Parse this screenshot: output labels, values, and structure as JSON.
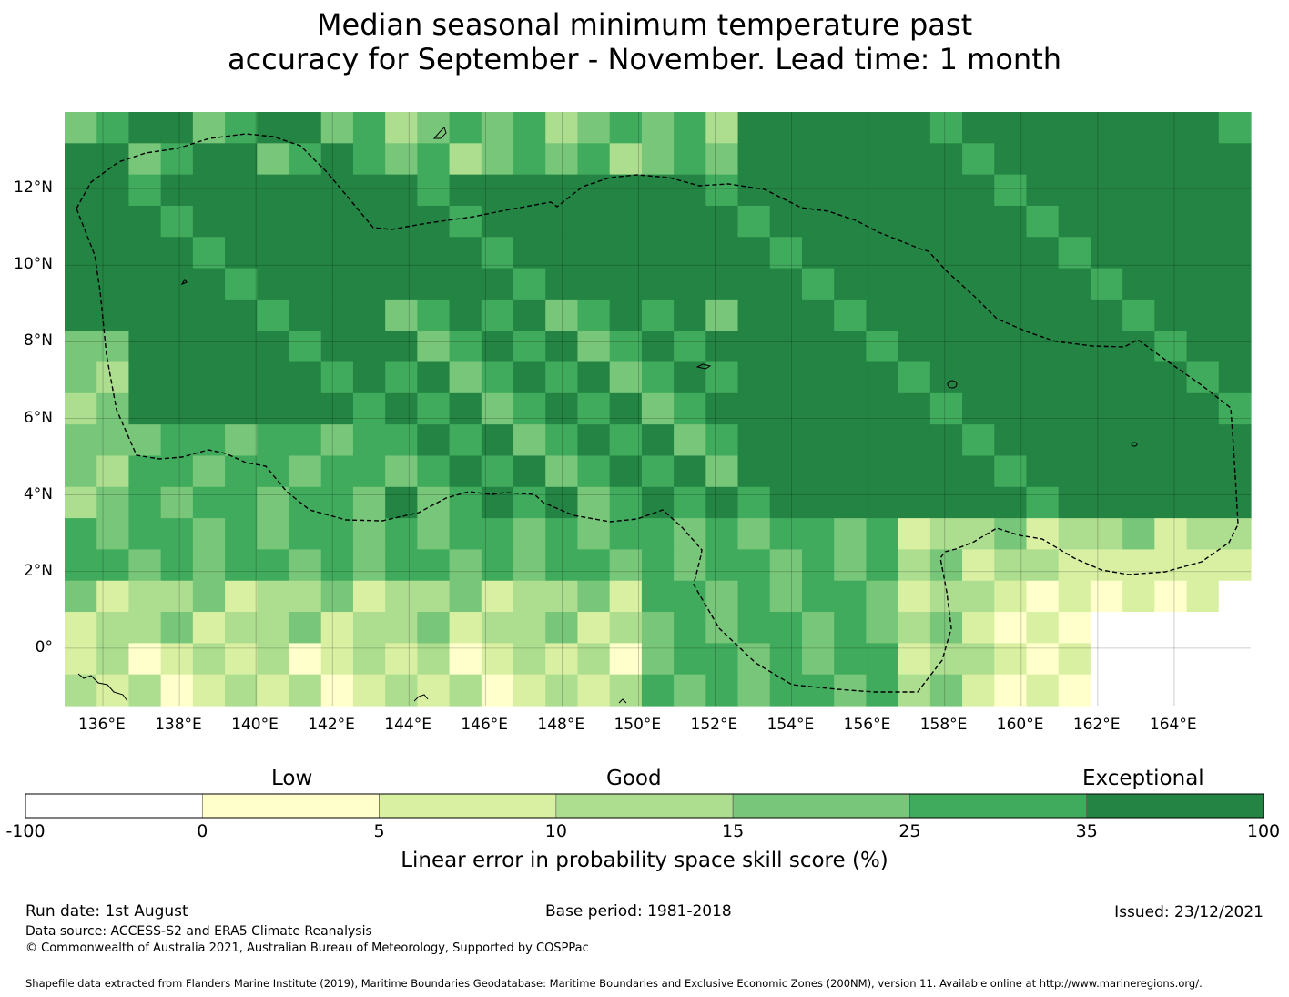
{
  "title": {
    "line1": "Median seasonal minimum temperature past",
    "line2": "accuracy for September - November. Lead time: 1 month"
  },
  "map": {
    "lon_range": [
      135,
      166
    ],
    "lat_range": [
      -1.5,
      14
    ],
    "lon_ticks": [
      "136°E",
      "138°E",
      "140°E",
      "142°E",
      "144°E",
      "146°E",
      "148°E",
      "150°E",
      "152°E",
      "154°E",
      "156°E",
      "158°E",
      "160°E",
      "162°E",
      "164°E"
    ],
    "lat_ticks": [
      "12°N",
      "10°N",
      "8°N",
      "6°N",
      "4°N",
      "2°N",
      "0°"
    ]
  },
  "colorbar": {
    "categories": {
      "low": "Low",
      "good": "Good",
      "exceptional": "Exceptional"
    },
    "ticks": [
      "-100",
      "0",
      "5",
      "10",
      "15",
      "25",
      "35",
      "100"
    ],
    "colors": [
      "#ffffff",
      "#ffffcc",
      "#d9f0a3",
      "#addd8e",
      "#78c679",
      "#41ab5d",
      "#238443"
    ],
    "label": "Linear error in probability space skill score (%)"
  },
  "footer": {
    "run_date": "Run date: 1st August",
    "base_period": "Base period: 1981-2018",
    "issued": "Issued: 23/12/2021",
    "data_source": "Data source: ACCESS-S2 and ERA5 Climate Reanalysis",
    "copyright": "© Commonwealth of Australia 2021, Australian Bureau of Meteorology, Supported by COSPPac",
    "shapefile": "Shapefile data extracted from Flanders Marine Institute (2019), Maritime Boundaries Geodatabase: Maritime Boundaries and Exclusive Economic Zones (200NM), version 11. Available online at http://www.marineregions.org/."
  }
}
